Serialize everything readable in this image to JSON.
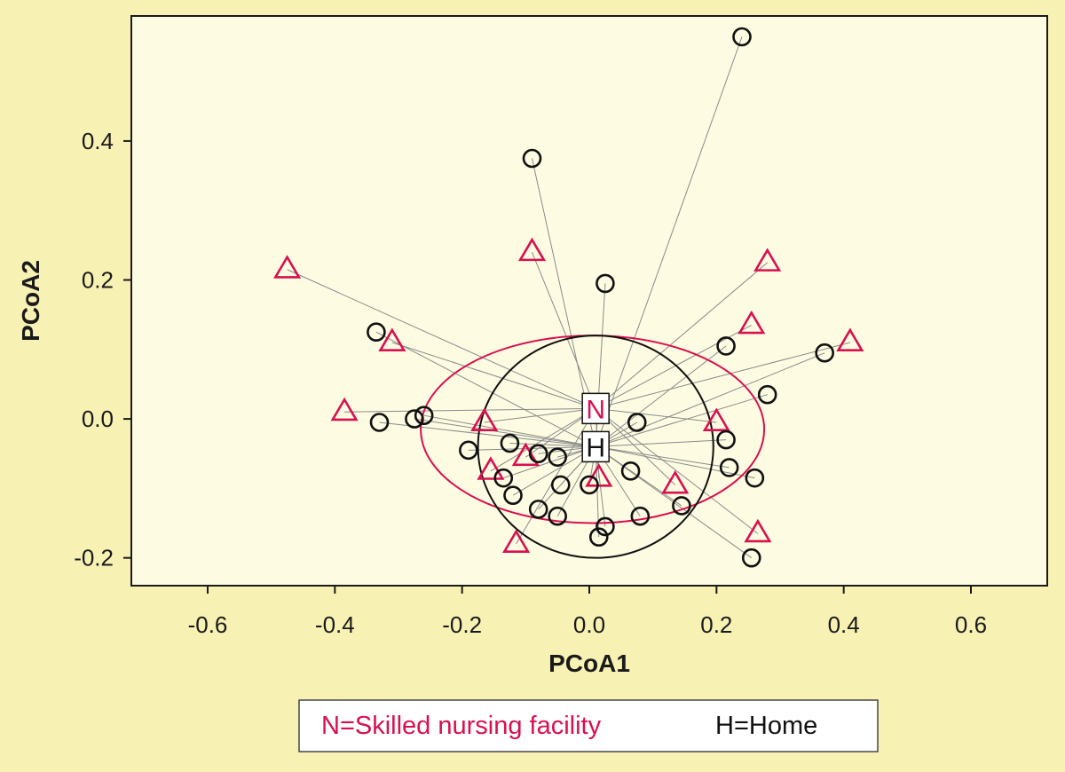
{
  "chart_data": {
    "type": "scatter",
    "xlabel": "PCoA1",
    "ylabel": "PCoA2",
    "xlim": [
      -0.72,
      0.72
    ],
    "ylim": [
      -0.24,
      0.58
    ],
    "xticks": [
      -0.6,
      -0.4,
      -0.2,
      0.0,
      0.2,
      0.4,
      0.6
    ],
    "yticks": [
      -0.2,
      0.0,
      0.2,
      0.4
    ],
    "xtick_labels": [
      "-0.6",
      "-0.4",
      "-0.2",
      "0.0",
      "0.2",
      "0.4",
      "0.6"
    ],
    "ytick_labels": [
      "-0.2",
      "0.0",
      "0.2",
      "0.4"
    ],
    "grid": false,
    "legend_position": "bottom-center",
    "colors": {
      "background": "#f8f1b4",
      "plot_background": "#fdfce2",
      "nursing": "#d8104f",
      "home": "#111111",
      "spider_line": "#8a8a8a"
    },
    "series": [
      {
        "name": "Skilled nursing facility",
        "marker": "triangle",
        "color": "#d8104f",
        "centroid_label": "N",
        "centroid": [
          0.01,
          0.015
        ],
        "ellipse": {
          "center": [
            0.005,
            -0.015
          ],
          "rx": 0.27,
          "ry": 0.135
        },
        "points": [
          [
            -0.475,
            0.215
          ],
          [
            -0.09,
            0.24
          ],
          [
            0.28,
            0.225
          ],
          [
            -0.31,
            0.11
          ],
          [
            0.255,
            0.135
          ],
          [
            0.41,
            0.11
          ],
          [
            -0.385,
            0.01
          ],
          [
            -0.165,
            -0.005
          ],
          [
            0.2,
            -0.005
          ],
          [
            -0.1,
            -0.055
          ],
          [
            -0.155,
            -0.075
          ],
          [
            0.015,
            -0.085
          ],
          [
            0.135,
            -0.095
          ],
          [
            0.265,
            -0.165
          ],
          [
            -0.115,
            -0.18
          ]
        ]
      },
      {
        "name": "Home",
        "marker": "circle",
        "color": "#111111",
        "centroid_label": "H",
        "centroid": [
          0.01,
          -0.04
        ],
        "ellipse": {
          "center": [
            0.01,
            -0.04
          ],
          "rx": 0.185,
          "ry": 0.16
        },
        "points": [
          [
            0.24,
            0.55
          ],
          [
            -0.09,
            0.375
          ],
          [
            0.025,
            0.195
          ],
          [
            -0.335,
            0.125
          ],
          [
            0.215,
            0.105
          ],
          [
            0.37,
            0.095
          ],
          [
            0.28,
            0.035
          ],
          [
            -0.26,
            0.005
          ],
          [
            -0.275,
            0.0
          ],
          [
            -0.33,
            -0.005
          ],
          [
            0.075,
            -0.005
          ],
          [
            -0.125,
            -0.035
          ],
          [
            0.215,
            -0.03
          ],
          [
            -0.19,
            -0.045
          ],
          [
            -0.08,
            -0.05
          ],
          [
            -0.05,
            -0.055
          ],
          [
            0.22,
            -0.07
          ],
          [
            0.065,
            -0.075
          ],
          [
            0.26,
            -0.085
          ],
          [
            -0.135,
            -0.085
          ],
          [
            0.0,
            -0.095
          ],
          [
            -0.045,
            -0.095
          ],
          [
            -0.12,
            -0.11
          ],
          [
            -0.08,
            -0.13
          ],
          [
            0.145,
            -0.125
          ],
          [
            -0.05,
            -0.14
          ],
          [
            0.08,
            -0.14
          ],
          [
            0.025,
            -0.155
          ],
          [
            0.015,
            -0.17
          ],
          [
            0.255,
            -0.2
          ]
        ]
      }
    ]
  },
  "legend": {
    "nursing_text": "N=Skilled nursing facility",
    "home_text": "H=Home"
  }
}
